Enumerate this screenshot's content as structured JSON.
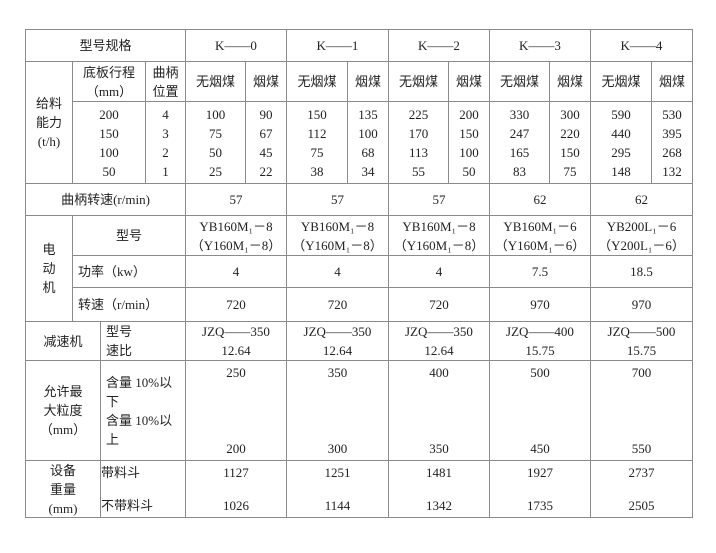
{
  "header": {
    "spec": "型号规格",
    "models": [
      "K——0",
      "K——1",
      "K——2",
      "K——3",
      "K——4"
    ]
  },
  "feed": {
    "label": [
      "给料",
      "能力",
      "(t/h)"
    ],
    "stroke_label": [
      "底板行程",
      "（mm）"
    ],
    "crank_label": [
      "曲柄",
      "位置"
    ],
    "coal": [
      "无烟煤",
      "烟煤"
    ],
    "strokes": [
      "200",
      "150",
      "100",
      "50"
    ],
    "positions": [
      "4",
      "3",
      "2",
      "1"
    ],
    "values": [
      [
        [
          "100",
          "75",
          "50",
          "25"
        ],
        [
          "90",
          "67",
          "45",
          "22"
        ]
      ],
      [
        [
          "150",
          "112",
          "75",
          "38"
        ],
        [
          "135",
          "100",
          "68",
          "34"
        ]
      ],
      [
        [
          "225",
          "170",
          "113",
          "55"
        ],
        [
          "200",
          "150",
          "100",
          "50"
        ]
      ],
      [
        [
          "330",
          "247",
          "165",
          "83"
        ],
        [
          "300",
          "220",
          "150",
          "75"
        ]
      ],
      [
        [
          "590",
          "440",
          "295",
          "148"
        ],
        [
          "530",
          "395",
          "268",
          "132"
        ]
      ]
    ]
  },
  "crank_speed": {
    "label": "曲柄转速(r/min)",
    "values": [
      "57",
      "57",
      "57",
      "62",
      "62"
    ]
  },
  "motor": {
    "label": [
      "电",
      "动",
      "机"
    ],
    "model_label": "型号",
    "power_label": "功率（kw）",
    "speed_label": "转速（r/min）",
    "models": [
      [
        "YB160M₁－8",
        "（Y160M₁－8）"
      ],
      [
        "YB160M₁－8",
        "（Y160M₁－8）"
      ],
      [
        "YB160M₁－8",
        "（Y160M₁－8）"
      ],
      [
        "YB160M₁－6",
        "（Y160M₁－6）"
      ],
      [
        "YB200L₁－6",
        "（Y200L₁－6）"
      ]
    ],
    "power": [
      "4",
      "4",
      "4",
      "7.5",
      "18.5"
    ],
    "speed": [
      "720",
      "720",
      "720",
      "970",
      "970"
    ]
  },
  "reducer": {
    "label": "减速机",
    "sub": [
      "型号",
      "速比"
    ],
    "models": [
      "JZQ——350",
      "JZQ——350",
      "JZQ——350",
      "JZQ——400",
      "JZQ——500"
    ],
    "ratios": [
      "12.64",
      "12.64",
      "12.64",
      "15.75",
      "15.75"
    ]
  },
  "grain": {
    "label": [
      "允许最",
      "大粒度",
      "（mm）"
    ],
    "below": [
      "含量 10%以",
      "下"
    ],
    "above": [
      "含量 10%以",
      "上"
    ],
    "below_values": [
      "250",
      "350",
      "400",
      "500",
      "700"
    ],
    "above_values": [
      "200",
      "300",
      "350",
      "450",
      "550"
    ]
  },
  "weight": {
    "label": [
      "设备",
      "重量",
      "(mm)"
    ],
    "with": "带料斗",
    "without": "不带料斗",
    "with_values": [
      "1127",
      "1251",
      "1481",
      "1927",
      "2737"
    ],
    "without_values": [
      "1026",
      "1144",
      "1342",
      "1735",
      "2505"
    ]
  }
}
